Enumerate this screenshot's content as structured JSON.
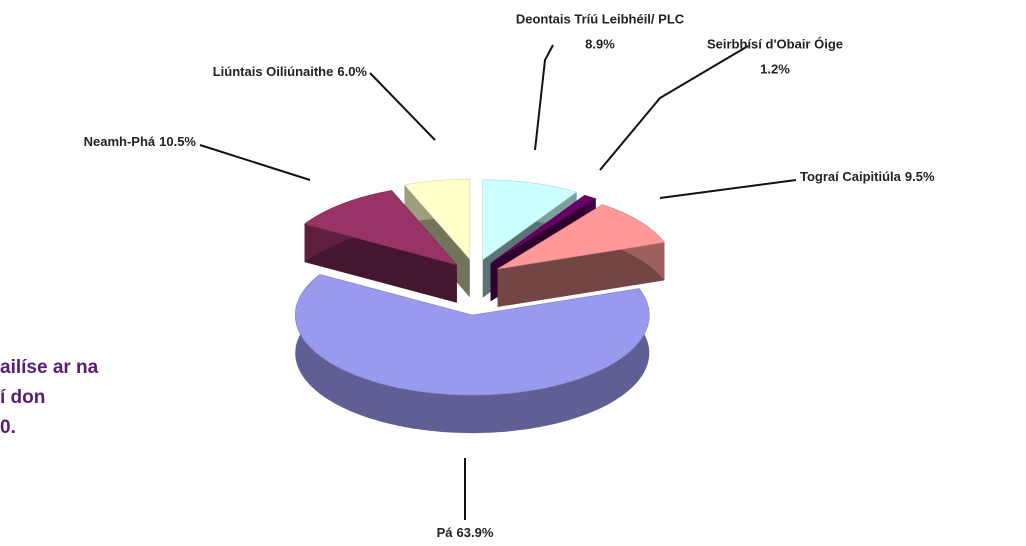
{
  "chart_data": {
    "type": "pie3d",
    "categories": [
      "Deontais Tríú Leibhéil/ PLC",
      "Seirbhísí d'Obair Óige",
      "Tograí Caipitiúla",
      "Pá",
      "Neamh-Phá",
      "Liúntais Oiliúnaithe"
    ],
    "values": [
      8.9,
      1.2,
      9.5,
      63.9,
      10.5,
      6.0
    ],
    "value_labels": [
      "8.9%",
      "1.2%",
      "9.5%",
      "63.9%",
      "10.5%",
      "6.0%"
    ],
    "colors": [
      "#ccffff",
      "#660066",
      "#ff9999",
      "#9999ee",
      "#993366",
      "#ffffcc"
    ],
    "side_text": [
      "ailíse ar na",
      "í don",
      "0."
    ]
  }
}
